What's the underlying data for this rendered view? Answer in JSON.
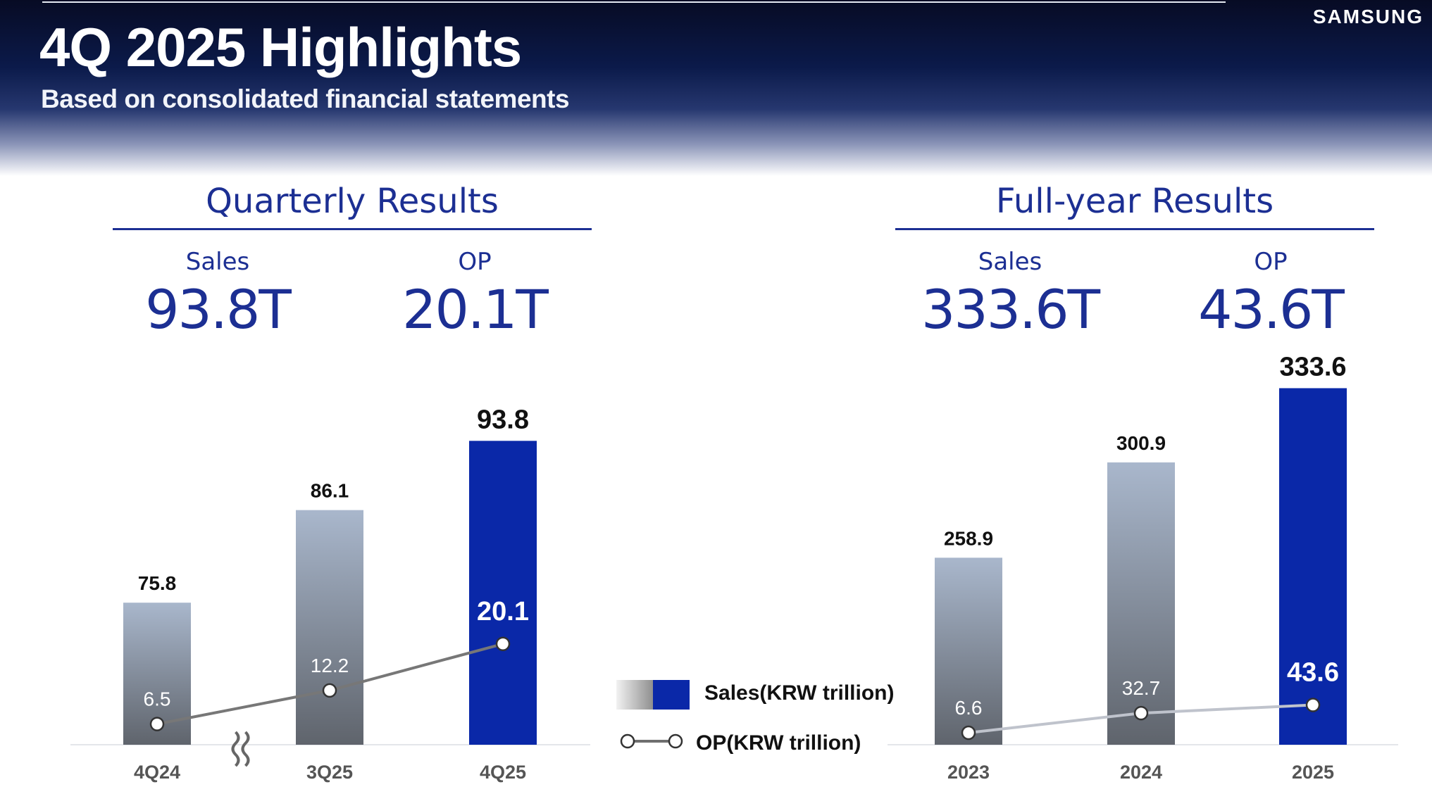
{
  "header": {
    "title": "4Q 2025 Highlights",
    "subtitle": "Based on consolidated financial statements",
    "brand": "SAMSUNG"
  },
  "quarterly": {
    "heading": "Quarterly Results",
    "sales_label": "Sales",
    "sales_value": "93.8T",
    "op_label": "OP",
    "op_value": "20.1T"
  },
  "fullyear": {
    "heading": "Full-year Results",
    "sales_label": "Sales",
    "sales_value": "333.6T",
    "op_label": "OP",
    "op_value": "43.6T"
  },
  "legend": {
    "sales": "Sales(KRW trillion)",
    "op": "OP(KRW trillion)"
  },
  "colors": {
    "accent": "#1c2f93",
    "highlight_bar": "#0a28a8",
    "bar_top": "#a9b7cc",
    "bar_bottom": "#5f646c"
  },
  "chart_data": [
    {
      "type": "bar",
      "title": "Quarterly Results",
      "categories": [
        "4Q24",
        "3Q25",
        "4Q25"
      ],
      "series": [
        {
          "name": "Sales(KRW trillion)",
          "type": "bar",
          "values": [
            75.8,
            86.1,
            93.8
          ]
        },
        {
          "name": "OP(KRW trillion)",
          "type": "line",
          "values": [
            6.5,
            12.2,
            20.1
          ]
        }
      ],
      "axis_break_after": "4Q24",
      "highlight": "4Q25"
    },
    {
      "type": "bar",
      "title": "Full-year Results",
      "categories": [
        "2023",
        "2024",
        "2025"
      ],
      "series": [
        {
          "name": "Sales(KRW trillion)",
          "type": "bar",
          "values": [
            258.9,
            300.9,
            333.6
          ]
        },
        {
          "name": "OP(KRW trillion)",
          "type": "line",
          "values": [
            6.6,
            32.7,
            43.6
          ]
        }
      ],
      "highlight": "2025"
    }
  ]
}
